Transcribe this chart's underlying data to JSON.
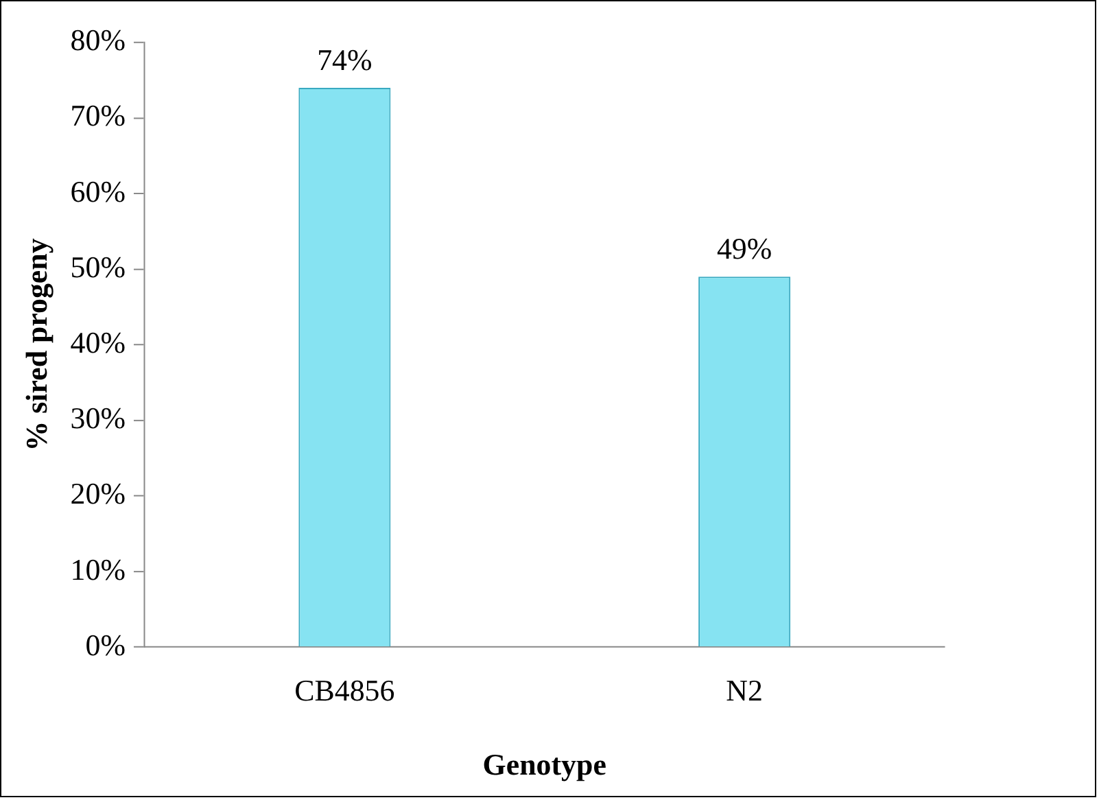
{
  "chart_data": {
    "type": "bar",
    "xlabel": "Genotype",
    "ylabel": "% sired progeny",
    "categories": [
      "CB4856",
      "N2"
    ],
    "values": [
      74,
      49
    ],
    "value_labels": [
      "74%",
      "49%"
    ],
    "color": "#86e3f2",
    "ylim": [
      0,
      80
    ],
    "yticks": [
      {
        "value": 0,
        "label": "0%"
      },
      {
        "value": 10,
        "label": "10%"
      },
      {
        "value": 20,
        "label": "20%"
      },
      {
        "value": 30,
        "label": "30%"
      },
      {
        "value": 40,
        "label": "40%"
      },
      {
        "value": 50,
        "label": "50%"
      },
      {
        "value": 60,
        "label": "60%"
      },
      {
        "value": 70,
        "label": "70%"
      },
      {
        "value": 80,
        "label": "80%"
      }
    ],
    "grid": false,
    "legend": false
  }
}
